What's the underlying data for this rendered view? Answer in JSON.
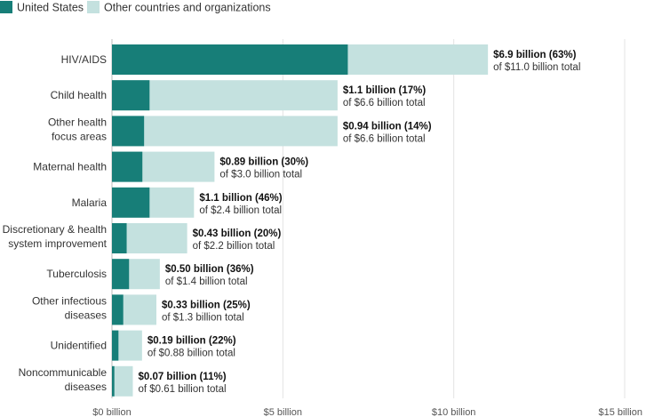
{
  "chart_data": {
    "type": "bar",
    "orientation": "horizontal",
    "stacked": true,
    "title": "",
    "xlabel": "",
    "ylabel": "",
    "xlim": [
      0,
      15
    ],
    "x_ticks": [
      0,
      5,
      10,
      15
    ],
    "x_tick_labels": [
      "$0 billion",
      "$5 billion",
      "$10 billion",
      "$15 billion"
    ],
    "grid": true,
    "legend_placement": "top-left",
    "categories": [
      "HIV/AIDS",
      "Child health",
      "Other health\nfocus areas",
      "Maternal health",
      "Malaria",
      "Discretionary & health\nsystem improvement",
      "Tuberculosis",
      "Other infectious\ndiseases",
      "Unidentified",
      "Noncommunicable\ndiseases"
    ],
    "totals": [
      11.0,
      6.6,
      6.6,
      3.0,
      2.4,
      2.2,
      1.4,
      1.3,
      0.88,
      0.61
    ],
    "series": [
      {
        "name": "United States",
        "color": "#177e78",
        "values": [
          6.9,
          1.1,
          0.94,
          0.89,
          1.1,
          0.43,
          0.5,
          0.33,
          0.19,
          0.07
        ]
      },
      {
        "name": "Other countries and organizations",
        "color": "#c4e1df",
        "values": [
          4.1,
          5.5,
          5.66,
          2.11,
          1.3,
          1.77,
          0.9,
          0.97,
          0.69,
          0.54
        ]
      }
    ],
    "annotations": [
      {
        "bold": "$6.9 billion (63%)",
        "sub": "of $11.0 billion total"
      },
      {
        "bold": "$1.1 billion (17%)",
        "sub": "of $6.6 billion total"
      },
      {
        "bold": "$0.94 billion (14%)",
        "sub": "of $6.6 billion total"
      },
      {
        "bold": "$0.89 billion (30%)",
        "sub": "of $3.0 billion total"
      },
      {
        "bold": "$1.1 billion (46%)",
        "sub": "of $2.4 billion total"
      },
      {
        "bold": "$0.43 billion (20%)",
        "sub": "of $2.2 billion total"
      },
      {
        "bold": "$0.50 billion (36%)",
        "sub": "of $1.4 billion total"
      },
      {
        "bold": "$0.33 billion (25%)",
        "sub": "of $1.3 billion total"
      },
      {
        "bold": "$0.19 billion (22%)",
        "sub": "of $0.88 billion total"
      },
      {
        "bold": "$0.07 billion (11%)",
        "sub": "of $0.61 billion total"
      }
    ]
  }
}
